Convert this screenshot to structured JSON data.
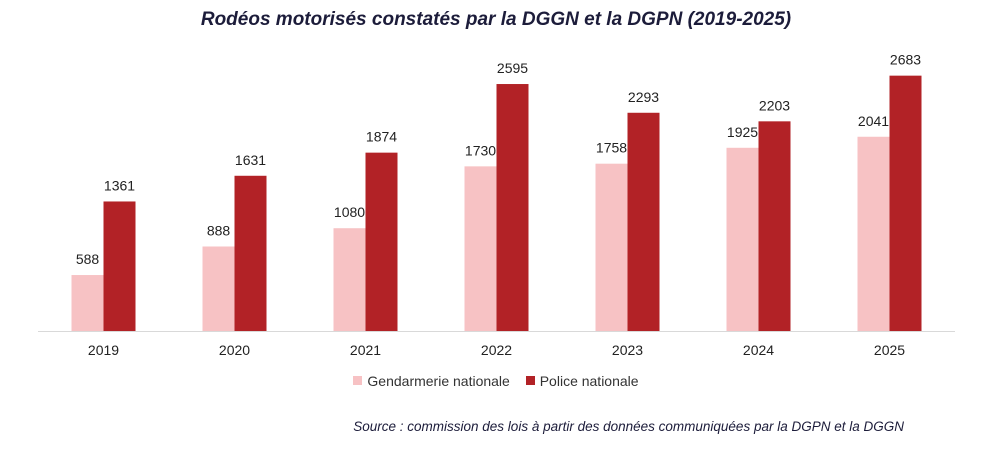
{
  "chart_data": {
    "type": "bar",
    "title": "Rodéos motorisés constatés par la DGGN et la DGPN (2019-2025)",
    "categories": [
      "2019",
      "2020",
      "2021",
      "2022",
      "2023",
      "2024",
      "2025"
    ],
    "series": [
      {
        "name": "Gendarmerie nationale",
        "color": "#f7c2c4",
        "values": [
          588,
          888,
          1080,
          1730,
          1758,
          1925,
          2041
        ]
      },
      {
        "name": "Police nationale",
        "color": "#b22226",
        "values": [
          1361,
          1631,
          1874,
          2595,
          2293,
          2203,
          2683
        ]
      }
    ],
    "ylim": [
      0,
      2900
    ],
    "grid": false,
    "legend_position": "bottom",
    "data_labels": true,
    "source": "Source : commission des lois à partir des données communiquées par la DGPN et la DGGN"
  }
}
